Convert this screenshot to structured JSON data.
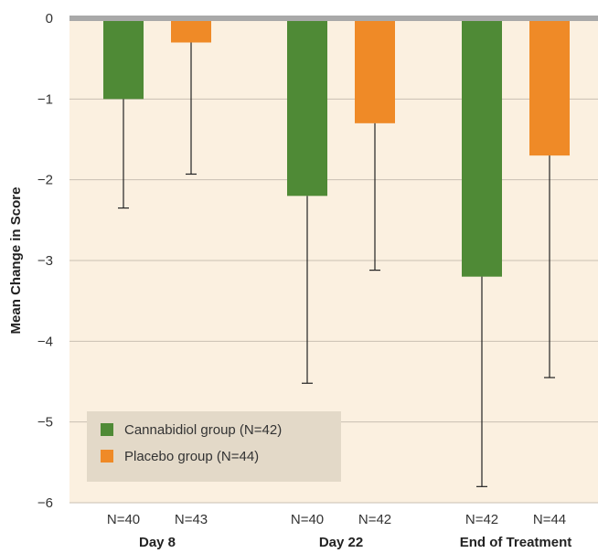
{
  "chart_data": {
    "type": "bar",
    "ylabel": "Mean Change in Score",
    "ylim": [
      -6,
      0
    ],
    "yticks": [
      0,
      -1,
      -2,
      -3,
      -4,
      -5,
      -6
    ],
    "ytick_labels": [
      "0",
      "−1",
      "−2",
      "−3",
      "−4",
      "−5",
      "−6"
    ],
    "grid": true,
    "legend_position": "bottom-left",
    "categories": [
      "Day 8",
      "Day 22",
      "End of Treatment"
    ],
    "series": [
      {
        "name": "Cannabidiol group (N=42)",
        "color": "#4f8a36",
        "values": [
          -1.0,
          -2.2,
          -3.2
        ],
        "error_low": [
          -2.35,
          -4.52,
          -5.8
        ],
        "n_labels": [
          "N=40",
          "N=40",
          "N=42"
        ]
      },
      {
        "name": "Placebo group (N=44)",
        "color": "#ef8a27",
        "values": [
          -0.3,
          -1.3,
          -1.7
        ],
        "error_low": [
          -1.93,
          -3.12,
          -4.45
        ],
        "n_labels": [
          "N=43",
          "N=42",
          "N=44"
        ]
      }
    ]
  },
  "colors": {
    "plot_background": "#fbf0e0",
    "zero_line": "#a9a9a9",
    "gridline": "#c9bfb2",
    "legend_background": "#e3d9c8"
  }
}
